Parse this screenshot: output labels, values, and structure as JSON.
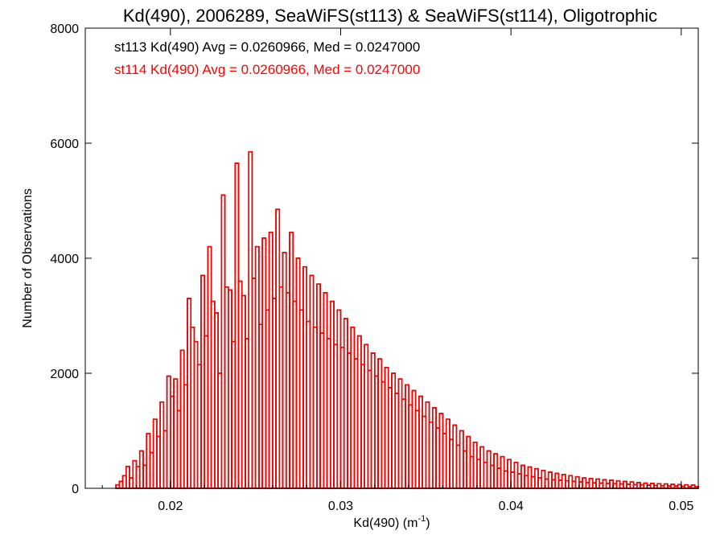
{
  "chart_data": {
    "type": "bar",
    "title": "Kd(490), 2006289, SeaWiFS(st113) & SeaWiFS(st114), Oligotrophic",
    "xlabel": "Kd(490) (m",
    "xlabel_sup": "-1",
    "xlabel_close": ")",
    "ylabel": "Number of Observations",
    "xlim": [
      0.015,
      0.051
    ],
    "ylim": [
      0,
      8000
    ],
    "xticks": [
      0.02,
      0.03,
      0.04,
      0.05
    ],
    "xtick_labels": [
      "0.02",
      "0.03",
      "0.04",
      "0.05"
    ],
    "yticks": [
      0,
      2000,
      4000,
      6000,
      8000
    ],
    "ytick_labels": [
      "0",
      "2000",
      "4000",
      "6000",
      "8000"
    ],
    "bin_width": 0.0002,
    "annotations": [
      {
        "text": "st113 Kd(490) Avg = 0.0260966, Med = 0.0247000",
        "color": "#000000"
      },
      {
        "text": "st114 Kd(490) Avg = 0.0260966, Med = 0.0247000",
        "color": "#ff0000"
      }
    ],
    "series": [
      {
        "name": "st113",
        "color": "#000000",
        "bins": [
          [
            0.015,
            0
          ],
          [
            0.0152,
            0
          ],
          [
            0.0154,
            0
          ],
          [
            0.0156,
            0
          ],
          [
            0.0158,
            0
          ],
          [
            0.016,
            0
          ],
          [
            0.0162,
            0
          ],
          [
            0.0164,
            0
          ],
          [
            0.0166,
            0
          ],
          [
            0.0168,
            60
          ],
          [
            0.017,
            120
          ],
          [
            0.0172,
            220
          ],
          [
            0.0174,
            380
          ],
          [
            0.0176,
            180
          ],
          [
            0.0178,
            480
          ],
          [
            0.018,
            380
          ],
          [
            0.0182,
            650
          ],
          [
            0.0184,
            400
          ],
          [
            0.0186,
            950
          ],
          [
            0.0188,
            620
          ],
          [
            0.019,
            1200
          ],
          [
            0.0192,
            900
          ],
          [
            0.0194,
            1500
          ],
          [
            0.0196,
            1000
          ],
          [
            0.0198,
            1950
          ],
          [
            0.02,
            1600
          ],
          [
            0.0202,
            1900
          ],
          [
            0.0204,
            1350
          ],
          [
            0.0206,
            2400
          ],
          [
            0.0208,
            1800
          ],
          [
            0.021,
            3300
          ],
          [
            0.0212,
            2800
          ],
          [
            0.0214,
            2550
          ],
          [
            0.0216,
            2150
          ],
          [
            0.0218,
            3700
          ],
          [
            0.022,
            2650
          ],
          [
            0.0222,
            4200
          ],
          [
            0.0224,
            3250
          ],
          [
            0.0226,
            3050
          ],
          [
            0.0228,
            2000
          ],
          [
            0.023,
            5100
          ],
          [
            0.0232,
            3500
          ],
          [
            0.0234,
            3450
          ],
          [
            0.0236,
            2550
          ],
          [
            0.0238,
            5650
          ],
          [
            0.024,
            3600
          ],
          [
            0.0242,
            3350
          ],
          [
            0.0244,
            2600
          ],
          [
            0.0246,
            5850
          ],
          [
            0.0248,
            3650
          ],
          [
            0.025,
            4200
          ],
          [
            0.0252,
            2850
          ],
          [
            0.0254,
            4350
          ],
          [
            0.0256,
            3100
          ],
          [
            0.0258,
            4450
          ],
          [
            0.026,
            3300
          ],
          [
            0.0262,
            4850
          ],
          [
            0.0264,
            3500
          ],
          [
            0.0266,
            4100
          ],
          [
            0.0268,
            3400
          ],
          [
            0.027,
            4450
          ],
          [
            0.0272,
            3250
          ],
          [
            0.0274,
            4000
          ],
          [
            0.0276,
            3100
          ],
          [
            0.0278,
            3850
          ],
          [
            0.028,
            2900
          ],
          [
            0.0282,
            3700
          ],
          [
            0.0284,
            2800
          ],
          [
            0.0286,
            3550
          ],
          [
            0.0288,
            2700
          ],
          [
            0.029,
            3400
          ],
          [
            0.0292,
            2600
          ],
          [
            0.0294,
            3250
          ],
          [
            0.0296,
            2500
          ],
          [
            0.0298,
            3100
          ],
          [
            0.03,
            2450
          ],
          [
            0.0302,
            2950
          ],
          [
            0.0304,
            2350
          ],
          [
            0.0306,
            2800
          ],
          [
            0.0308,
            2250
          ],
          [
            0.031,
            2650
          ],
          [
            0.0312,
            2150
          ],
          [
            0.0314,
            2500
          ],
          [
            0.0316,
            2050
          ],
          [
            0.0318,
            2350
          ],
          [
            0.032,
            1950
          ],
          [
            0.0322,
            2250
          ],
          [
            0.0324,
            1850
          ],
          [
            0.0326,
            2100
          ],
          [
            0.0328,
            1750
          ],
          [
            0.033,
            2000
          ],
          [
            0.0332,
            1650
          ],
          [
            0.0334,
            1900
          ],
          [
            0.0336,
            1550
          ],
          [
            0.0338,
            1800
          ],
          [
            0.034,
            1450
          ],
          [
            0.0342,
            1700
          ],
          [
            0.0344,
            1350
          ],
          [
            0.0346,
            1600
          ],
          [
            0.0348,
            1250
          ],
          [
            0.035,
            1500
          ],
          [
            0.0352,
            1150
          ],
          [
            0.0354,
            1400
          ],
          [
            0.0356,
            1050
          ],
          [
            0.0358,
            1300
          ],
          [
            0.036,
            950
          ],
          [
            0.0362,
            1200
          ],
          [
            0.0364,
            850
          ],
          [
            0.0366,
            1100
          ],
          [
            0.0368,
            750
          ],
          [
            0.037,
            1000
          ],
          [
            0.0372,
            650
          ],
          [
            0.0374,
            900
          ],
          [
            0.0376,
            550
          ],
          [
            0.0378,
            800
          ],
          [
            0.038,
            500
          ],
          [
            0.0382,
            720
          ],
          [
            0.0384,
            450
          ],
          [
            0.0386,
            650
          ],
          [
            0.0388,
            400
          ],
          [
            0.039,
            600
          ],
          [
            0.0392,
            350
          ],
          [
            0.0394,
            550
          ],
          [
            0.0396,
            300
          ],
          [
            0.0398,
            500
          ],
          [
            0.04,
            280
          ],
          [
            0.0402,
            450
          ],
          [
            0.0404,
            250
          ],
          [
            0.0406,
            400
          ],
          [
            0.0408,
            220
          ],
          [
            0.041,
            370
          ],
          [
            0.0412,
            200
          ],
          [
            0.0414,
            340
          ],
          [
            0.0416,
            180
          ],
          [
            0.0418,
            310
          ],
          [
            0.042,
            160
          ],
          [
            0.0422,
            280
          ],
          [
            0.0424,
            150
          ],
          [
            0.0426,
            260
          ],
          [
            0.0428,
            140
          ],
          [
            0.043,
            240
          ],
          [
            0.0432,
            130
          ],
          [
            0.0434,
            220
          ],
          [
            0.0436,
            120
          ],
          [
            0.0438,
            200
          ],
          [
            0.044,
            110
          ],
          [
            0.0442,
            180
          ],
          [
            0.0444,
            100
          ],
          [
            0.0446,
            170
          ],
          [
            0.0448,
            95
          ],
          [
            0.045,
            160
          ],
          [
            0.0452,
            90
          ],
          [
            0.0454,
            150
          ],
          [
            0.0456,
            85
          ],
          [
            0.0458,
            140
          ],
          [
            0.046,
            80
          ],
          [
            0.0462,
            130
          ],
          [
            0.0464,
            75
          ],
          [
            0.0466,
            120
          ],
          [
            0.0468,
            70
          ],
          [
            0.047,
            110
          ],
          [
            0.0472,
            65
          ],
          [
            0.0474,
            100
          ],
          [
            0.0476,
            60
          ],
          [
            0.0478,
            90
          ],
          [
            0.048,
            55
          ],
          [
            0.0482,
            85
          ],
          [
            0.0484,
            50
          ],
          [
            0.0486,
            80
          ],
          [
            0.0488,
            45
          ],
          [
            0.049,
            75
          ],
          [
            0.0492,
            40
          ],
          [
            0.0494,
            70
          ],
          [
            0.0496,
            40
          ],
          [
            0.0498,
            65
          ],
          [
            0.05,
            35
          ],
          [
            0.0502,
            60
          ],
          [
            0.0504,
            30
          ],
          [
            0.0506,
            55
          ],
          [
            0.0508,
            30
          ]
        ]
      },
      {
        "name": "st114",
        "color": "#ff0000",
        "same_as": "st113"
      }
    ]
  }
}
